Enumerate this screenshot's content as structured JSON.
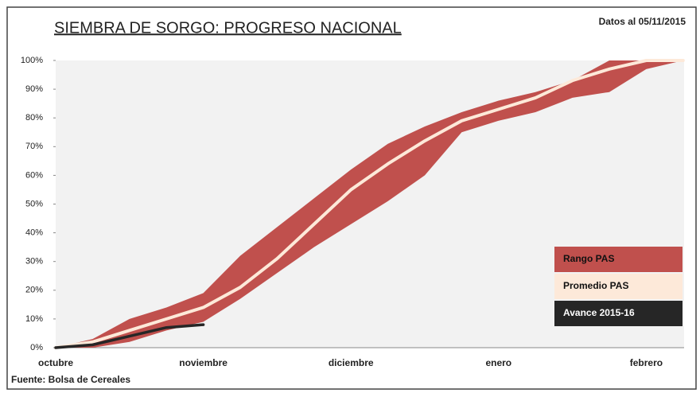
{
  "chart_data": {
    "type": "band-line",
    "title": "SIEMBRA DE SORGO: PROGRESO NACIONAL",
    "subtitle": "Datos al 05/11/2015",
    "source": "Fuente: Bolsa de Cereales",
    "categories": [
      "octubre",
      null,
      null,
      null,
      "noviembre",
      null,
      null,
      null,
      "diciembre",
      null,
      null,
      null,
      "enero",
      null,
      null,
      null,
      "febrero",
      null
    ],
    "series": [
      {
        "name": "Rango PAS",
        "color": "#c0504d",
        "upper": [
          0,
          3,
          10,
          14,
          19,
          32,
          42,
          52,
          62,
          71,
          77,
          82,
          86,
          89,
          93,
          100,
          100,
          100
        ],
        "lower": [
          0,
          0,
          2,
          6,
          9,
          17,
          26,
          35,
          43,
          51,
          60,
          75,
          79,
          82,
          87,
          89,
          97,
          100
        ]
      },
      {
        "name": "Promedio PAS",
        "color": "#fde9d9",
        "values": [
          0,
          2,
          6,
          10,
          14,
          21,
          31,
          43,
          55,
          64,
          72,
          79,
          83,
          87,
          93,
          97,
          100,
          100
        ]
      },
      {
        "name": "Avance 2015-16",
        "color": "#262626",
        "values": [
          0,
          1,
          4,
          7,
          8,
          null,
          null,
          null,
          null,
          null,
          null,
          null,
          null,
          null,
          null,
          null,
          null,
          null
        ]
      }
    ],
    "ylim": [
      0,
      100
    ],
    "yticks": [
      {
        "value": 0,
        "label": "0%"
      },
      {
        "value": 10,
        "label": "10%"
      },
      {
        "value": 20,
        "label": "20%"
      },
      {
        "value": 30,
        "label": "30%"
      },
      {
        "value": 40,
        "label": "40%"
      },
      {
        "value": 50,
        "label": "50%"
      },
      {
        "value": 60,
        "label": "60%"
      },
      {
        "value": 70,
        "label": "70%"
      },
      {
        "value": 80,
        "label": "80%"
      },
      {
        "value": 90,
        "label": "90%"
      },
      {
        "value": 100,
        "label": "100%"
      }
    ],
    "grid": false
  }
}
